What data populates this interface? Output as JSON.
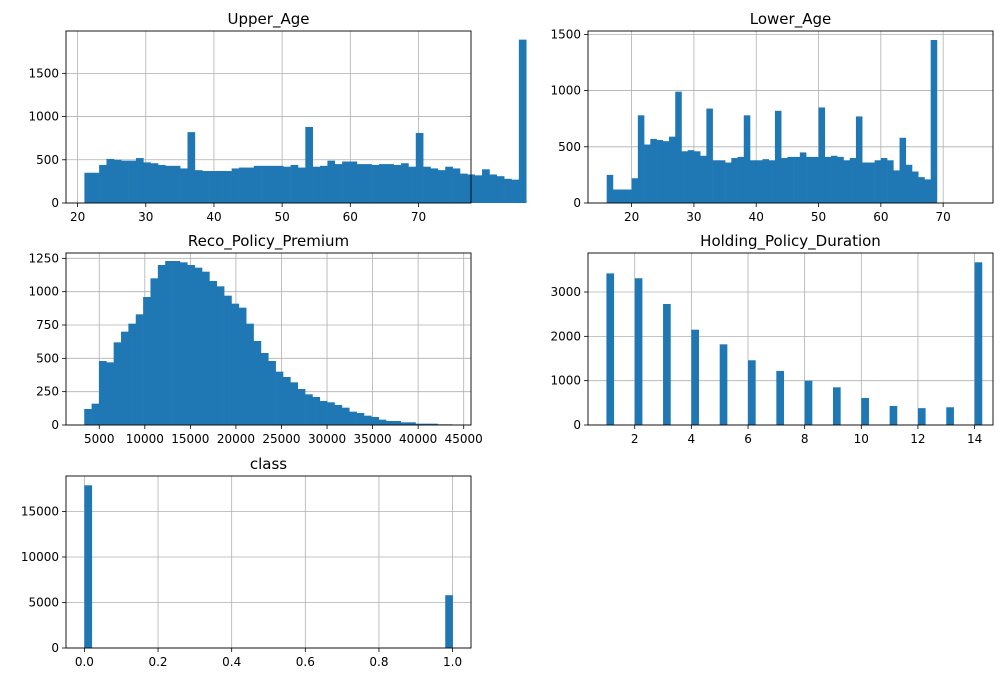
{
  "chart_data": [
    {
      "type": "bar",
      "title": "Upper_Age",
      "xlabel": "",
      "ylabel": "",
      "xlim": [
        18.3,
        77.7
      ],
      "ylim": [
        0,
        1990
      ],
      "xticks": [
        20,
        30,
        40,
        50,
        60,
        70
      ],
      "yticks": [
        0,
        500,
        1000,
        1500
      ],
      "grid": true,
      "color": "#1f77b4",
      "bins": {
        "start": 21,
        "width": 1.08
      },
      "values": [
        350,
        350,
        440,
        510,
        500,
        490,
        490,
        520,
        470,
        460,
        440,
        430,
        430,
        400,
        820,
        380,
        370,
        370,
        370,
        370,
        400,
        410,
        410,
        430,
        430,
        430,
        430,
        420,
        440,
        410,
        880,
        420,
        430,
        490,
        450,
        480,
        480,
        450,
        450,
        440,
        450,
        450,
        440,
        460,
        420,
        810,
        420,
        400,
        380,
        420,
        400,
        340,
        330,
        320,
        390,
        330,
        310,
        280,
        270,
        1890
      ]
    },
    {
      "type": "bar",
      "title": "Lower_Age",
      "xlabel": "",
      "ylabel": "",
      "xlim": [
        13.0,
        78.0
      ],
      "ylim": [
        0,
        1530
      ],
      "xticks": [
        20,
        30,
        40,
        50,
        60,
        70
      ],
      "yticks": [
        0,
        500,
        1000,
        1500
      ],
      "grid": true,
      "color": "#1f77b4",
      "bins": {
        "start": 16,
        "width": 1.0
      },
      "values": [
        250,
        120,
        120,
        120,
        220,
        780,
        520,
        570,
        560,
        550,
        590,
        990,
        460,
        470,
        460,
        420,
        840,
        380,
        380,
        360,
        400,
        410,
        780,
        380,
        380,
        390,
        380,
        820,
        400,
        410,
        410,
        450,
        410,
        410,
        850,
        410,
        420,
        410,
        380,
        400,
        770,
        360,
        360,
        380,
        400,
        380,
        290,
        580,
        340,
        280,
        230,
        210,
        1450
      ]
    },
    {
      "type": "bar",
      "title": "Reco_Policy_Premium",
      "xlabel": "",
      "ylabel": "",
      "xlim": [
        1350,
        45800
      ],
      "ylim": [
        0,
        1290
      ],
      "xticks": [
        5000,
        10000,
        15000,
        20000,
        25000,
        30000,
        35000,
        40000,
        45000
      ],
      "yticks": [
        0,
        250,
        500,
        750,
        1000,
        1250
      ],
      "grid": true,
      "color": "#1f77b4",
      "bins": {
        "start": 3350,
        "width": 808
      },
      "values": [
        120,
        160,
        480,
        470,
        620,
        700,
        760,
        830,
        960,
        1100,
        1200,
        1230,
        1230,
        1220,
        1200,
        1180,
        1150,
        1080,
        1040,
        970,
        910,
        880,
        760,
        630,
        540,
        480,
        400,
        360,
        320,
        270,
        230,
        210,
        180,
        170,
        150,
        130,
        100,
        90,
        70,
        60,
        40,
        30,
        30,
        20,
        20,
        10,
        10,
        10,
        5,
        5
      ]
    },
    {
      "type": "bar",
      "title": "Holding_Policy_Duration",
      "xlabel": "",
      "ylabel": "",
      "xlim": [
        0.35,
        14.65
      ],
      "ylim": [
        0,
        3880
      ],
      "xticks": [
        2,
        4,
        6,
        8,
        10,
        12,
        14
      ],
      "yticks": [
        0,
        1000,
        2000,
        3000
      ],
      "grid": true,
      "color": "#1f77b4",
      "bins": {
        "start": 1,
        "width": 0.26
      },
      "category_values": [
        1,
        2,
        3,
        4,
        5,
        6,
        7,
        8,
        9,
        10,
        11,
        12,
        13,
        14
      ],
      "values": [
        3420,
        3310,
        2730,
        2150,
        1820,
        1460,
        1220,
        1000,
        850,
        610,
        430,
        380,
        400,
        3670
      ]
    },
    {
      "type": "bar",
      "title": "class",
      "xlabel": "",
      "ylabel": "",
      "xlim": [
        -0.05,
        1.05
      ],
      "ylim": [
        0,
        18900
      ],
      "xticks": [
        0.0,
        0.2,
        0.4,
        0.6,
        0.8,
        1.0
      ],
      "xtick_labels": [
        "0.0",
        "0.2",
        "0.4",
        "0.6",
        "0.8",
        "1.0"
      ],
      "yticks": [
        0,
        5000,
        10000,
        15000
      ],
      "grid": true,
      "color": "#1f77b4",
      "bins": {
        "start": 0,
        "width": 0.02
      },
      "category_values": [
        0,
        1
      ],
      "values": [
        17880,
        5800
      ]
    }
  ]
}
